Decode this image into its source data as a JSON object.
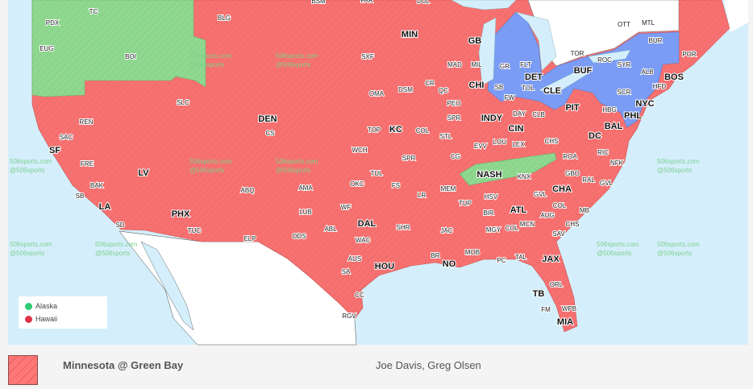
{
  "colors": {
    "game_region": "#f87171",
    "other_game_a": "#8fd88f",
    "other_game_b": "#7b9cf4",
    "water": "#d4effb",
    "land_outside": "#ffffff"
  },
  "legend": {
    "items": [
      {
        "label": "Alaska",
        "color": "#2ecc71"
      },
      {
        "label": "Hawaii",
        "color": "#e0344a"
      }
    ]
  },
  "watermark": {
    "line1": "506sports.com",
    "line2": "@506sports"
  },
  "footer": {
    "game": "Minnesota @ Green Bay",
    "broadcasters": "Joe Davis, Greg Olsen"
  },
  "markets": [
    {
      "code": "TC"
    },
    {
      "code": "PDX"
    },
    {
      "code": "EUG"
    },
    {
      "code": "BOI"
    },
    {
      "code": "BLG"
    },
    {
      "code": "SLC"
    },
    {
      "code": "DEN",
      "major": true
    },
    {
      "code": "CS"
    },
    {
      "code": "REN"
    },
    {
      "code": "SAC"
    },
    {
      "code": "SF",
      "major": true
    },
    {
      "code": "FRE"
    },
    {
      "code": "LV",
      "major": true
    },
    {
      "code": "BAK"
    },
    {
      "code": "SB"
    },
    {
      "code": "LA",
      "major": true
    },
    {
      "code": "SD"
    },
    {
      "code": "PHX",
      "major": true
    },
    {
      "code": "TUC"
    },
    {
      "code": "ABQ"
    },
    {
      "code": "ELP"
    },
    {
      "code": "AMA"
    },
    {
      "code": "LUB"
    },
    {
      "code": "ODS"
    },
    {
      "code": "WF"
    },
    {
      "code": "ABL"
    },
    {
      "code": "DAL",
      "major": true
    },
    {
      "code": "WAC"
    },
    {
      "code": "AUS"
    },
    {
      "code": "SA"
    },
    {
      "code": "HOU",
      "major": true
    },
    {
      "code": "CC"
    },
    {
      "code": "RGV"
    },
    {
      "code": "SHR"
    },
    {
      "code": "BR"
    },
    {
      "code": "NO",
      "major": true
    },
    {
      "code": "JAC"
    },
    {
      "code": "MEM"
    },
    {
      "code": "LR"
    },
    {
      "code": "FS"
    },
    {
      "code": "TUL"
    },
    {
      "code": "OKC"
    },
    {
      "code": "WCH"
    },
    {
      "code": "TOP"
    },
    {
      "code": "KC",
      "major": true
    },
    {
      "code": "SPR"
    },
    {
      "code": "COL"
    },
    {
      "code": "STL"
    },
    {
      "code": "SPR"
    },
    {
      "code": "PEO"
    },
    {
      "code": "QC"
    },
    {
      "code": "CR"
    },
    {
      "code": "DSM"
    },
    {
      "code": "OMA"
    },
    {
      "code": "SXF"
    },
    {
      "code": "MIN",
      "major": true
    },
    {
      "code": "BSM"
    },
    {
      "code": "FAR"
    },
    {
      "code": "DUL"
    },
    {
      "code": "GB",
      "major": true
    },
    {
      "code": "MAD"
    },
    {
      "code": "MIL"
    },
    {
      "code": "CHI",
      "major": true
    },
    {
      "code": "SB"
    },
    {
      "code": "GR"
    },
    {
      "code": "FLT"
    },
    {
      "code": "DET",
      "major": true
    },
    {
      "code": "TOL"
    },
    {
      "code": "FW"
    },
    {
      "code": "CLE",
      "major": true
    },
    {
      "code": "PIT",
      "major": true
    },
    {
      "code": "DAY"
    },
    {
      "code": "CLB"
    },
    {
      "code": "INDY",
      "major": true
    },
    {
      "code": "CIN",
      "major": true
    },
    {
      "code": "LOU"
    },
    {
      "code": "LEX"
    },
    {
      "code": "EVV"
    },
    {
      "code": "CG"
    },
    {
      "code": "CHS"
    },
    {
      "code": "ROA"
    },
    {
      "code": "RIC"
    },
    {
      "code": "NFK"
    },
    {
      "code": "HBG"
    },
    {
      "code": "BAL",
      "major": true
    },
    {
      "code": "DC",
      "major": true
    },
    {
      "code": "PHL",
      "major": true
    },
    {
      "code": "NYC",
      "major": true
    },
    {
      "code": "SCR"
    },
    {
      "code": "HFD"
    },
    {
      "code": "BOS",
      "major": true
    },
    {
      "code": "ALB"
    },
    {
      "code": "BUR"
    },
    {
      "code": "POR"
    },
    {
      "code": "SYR"
    },
    {
      "code": "ROC"
    },
    {
      "code": "BUF",
      "major": true
    },
    {
      "code": "TOR"
    },
    {
      "code": "OTT"
    },
    {
      "code": "MTL"
    },
    {
      "code": "NASH",
      "major": true
    },
    {
      "code": "KNX"
    },
    {
      "code": "GBO"
    },
    {
      "code": "RAL"
    },
    {
      "code": "GVL"
    },
    {
      "code": "CHA",
      "major": true
    },
    {
      "code": "GVL"
    },
    {
      "code": "HSV"
    },
    {
      "code": "TUP"
    },
    {
      "code": "BIR"
    },
    {
      "code": "ATL",
      "major": true
    },
    {
      "code": "COL"
    },
    {
      "code": "AUG"
    },
    {
      "code": "MCN"
    },
    {
      "code": "MB"
    },
    {
      "code": "CHS"
    },
    {
      "code": "MGY"
    },
    {
      "code": "COL"
    },
    {
      "code": "SAV"
    },
    {
      "code": "MOB"
    },
    {
      "code": "PC"
    },
    {
      "code": "TAL"
    },
    {
      "code": "JAX",
      "major": true
    },
    {
      "code": "ORL"
    },
    {
      "code": "TB",
      "major": true
    },
    {
      "code": "FM"
    },
    {
      "code": "WPB"
    },
    {
      "code": "MIA",
      "major": true
    }
  ]
}
